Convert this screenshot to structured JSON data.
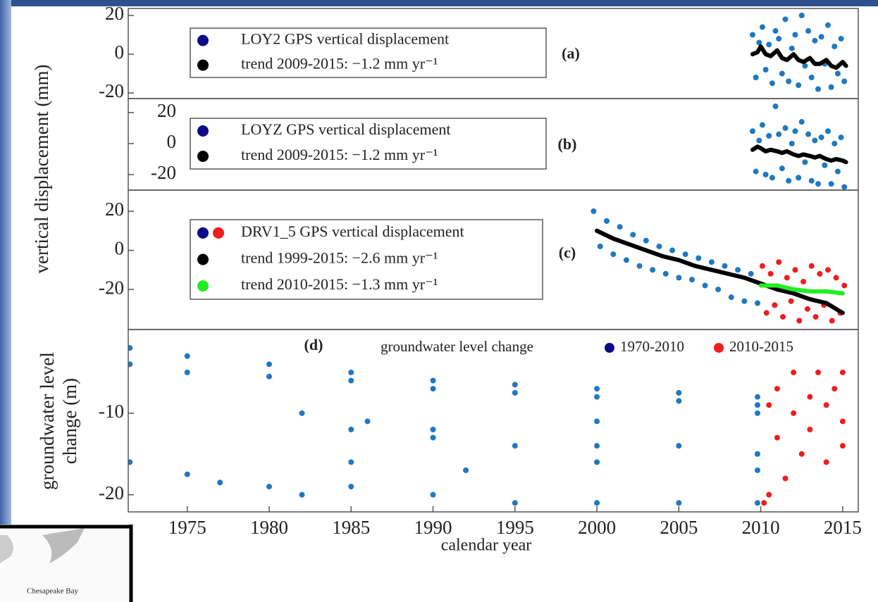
{
  "figure": {
    "ylabel": "vertical displacement  (mm)",
    "xlabel": "calendar year"
  },
  "inset": {
    "label": "Chesapeake Bay"
  },
  "chart_data": [
    {
      "type": "scatter",
      "label": "(a)",
      "xlim": [
        1971.4,
        2015.95
      ],
      "ylim": [
        -22.9,
        23.6
      ],
      "yticks": [
        20,
        0,
        -20
      ],
      "legend": [
        {
          "label": "LOY2 GPS vertical displacement",
          "colors": [
            "#0b0b8a"
          ]
        },
        {
          "label": "trend  2009-2015: −1.2 mm yr⁻¹",
          "colors": [
            "#000000"
          ]
        }
      ],
      "series": [
        {
          "mode": "scatter",
          "color": "#1f78c1",
          "x": [
            2009.5,
            2009.7,
            2009.9,
            2010.1,
            2010.3,
            2010.5,
            2010.7,
            2010.9,
            2011.1,
            2011.3,
            2011.5,
            2011.7,
            2011.9,
            2012.1,
            2012.3,
            2012.5,
            2012.7,
            2012.9,
            2013.1,
            2013.3,
            2013.5,
            2013.7,
            2013.9,
            2014.1,
            2014.3,
            2014.5,
            2014.7,
            2014.9,
            2015.1
          ],
          "values": [
            10,
            -12,
            6,
            14,
            -8,
            5,
            -15,
            12,
            8,
            -10,
            18,
            -14,
            3,
            10,
            -16,
            20,
            -6,
            12,
            -12,
            7,
            -18,
            9,
            -5,
            15,
            -17,
            4,
            -10,
            8,
            -14
          ]
        },
        {
          "mode": "line",
          "color": "#000000",
          "x": [
            2009.5,
            2009.8,
            2010.0,
            2010.3,
            2010.6,
            2011.0,
            2011.3,
            2011.6,
            2012.0,
            2012.3,
            2012.6,
            2013.0,
            2013.3,
            2013.6,
            2014.0,
            2014.3,
            2014.6,
            2015.0,
            2015.2
          ],
          "values": [
            0,
            1,
            4,
            0,
            -1,
            2,
            -2,
            -3,
            0,
            -3,
            -4,
            -2,
            -5,
            -5,
            -3,
            -6,
            -7,
            -4,
            -6
          ]
        }
      ]
    },
    {
      "type": "scatter",
      "label": "(b)",
      "xlim": [
        1971.4,
        2015.95
      ],
      "ylim": [
        -30,
        29
      ],
      "yticks": [
        20,
        0,
        -20
      ],
      "legend": [
        {
          "label": "LOYZ GPS vertical displacement",
          "colors": [
            "#0b0b8a"
          ]
        },
        {
          "label": "trend  2009-2015: −1.2 mm yr⁻¹",
          "colors": [
            "#000000"
          ]
        }
      ],
      "series": [
        {
          "mode": "scatter",
          "color": "#1f78c1",
          "x": [
            2009.5,
            2009.7,
            2009.9,
            2010.1,
            2010.3,
            2010.5,
            2010.7,
            2010.9,
            2011.1,
            2011.3,
            2011.5,
            2011.7,
            2011.9,
            2012.1,
            2012.3,
            2012.5,
            2012.7,
            2012.9,
            2013.1,
            2013.3,
            2013.5,
            2013.7,
            2013.9,
            2014.1,
            2014.3,
            2014.5,
            2014.7,
            2014.9,
            2015.1
          ],
          "values": [
            8,
            -18,
            2,
            12,
            -20,
            5,
            -22,
            24,
            6,
            -16,
            10,
            -24,
            0,
            8,
            -22,
            14,
            -12,
            6,
            -24,
            2,
            -26,
            4,
            -14,
            8,
            -26,
            0,
            -18,
            4,
            -28
          ]
        },
        {
          "mode": "line",
          "color": "#000000",
          "x": [
            2009.5,
            2009.8,
            2010.0,
            2010.3,
            2010.6,
            2011.0,
            2011.3,
            2011.6,
            2012.0,
            2012.3,
            2012.6,
            2013.0,
            2013.3,
            2013.6,
            2014.0,
            2014.3,
            2014.6,
            2015.0,
            2015.2
          ],
          "values": [
            -4,
            -2,
            -3,
            -5,
            -4,
            -5,
            -6,
            -5,
            -7,
            -8,
            -7,
            -8,
            -9,
            -8,
            -10,
            -11,
            -10,
            -11,
            -12
          ]
        }
      ]
    },
    {
      "type": "scatter",
      "label": "(c)",
      "xlim": [
        1971.4,
        2015.95
      ],
      "ylim": [
        -40.5,
        30.8
      ],
      "yticks": [
        20,
        0,
        -20
      ],
      "legend": [
        {
          "label": "DRV1_5 GPS vertical displacement",
          "colors": [
            "#0b0b8a",
            "#f01d1d"
          ]
        },
        {
          "label": "trend 1999-2015: −2.6  mm yr⁻¹",
          "colors": [
            "#000000"
          ]
        },
        {
          "label": "trend 2010-2015: −1.3  mm yr⁻¹",
          "colors": [
            "#22ee22"
          ]
        }
      ],
      "series": [
        {
          "mode": "scatter",
          "color": "#1f78c1",
          "x": [
            1999.8,
            2000.2,
            2000.6,
            2001.0,
            2001.4,
            2001.8,
            2002.2,
            2002.6,
            2003.0,
            2003.4,
            2003.8,
            2004.2,
            2004.6,
            2005.0,
            2005.4,
            2005.8,
            2006.2,
            2006.6,
            2007.0,
            2007.4,
            2007.8,
            2008.2,
            2008.6,
            2009.0,
            2009.4,
            2009.8
          ],
          "values": [
            20,
            2,
            15,
            -2,
            12,
            -5,
            8,
            -8,
            5,
            -10,
            2,
            -12,
            0,
            -14,
            -2,
            -15,
            -4,
            -18,
            -6,
            -20,
            -8,
            -24,
            -10,
            -26,
            -12,
            -27
          ]
        },
        {
          "mode": "scatter",
          "color": "#f01d1d",
          "x": [
            2010.1,
            2010.35,
            2010.6,
            2010.85,
            2011.1,
            2011.35,
            2011.6,
            2011.85,
            2012.1,
            2012.35,
            2012.6,
            2012.85,
            2013.1,
            2013.35,
            2013.6,
            2013.85,
            2014.1,
            2014.35,
            2014.6,
            2014.85,
            2015.1
          ],
          "values": [
            -8,
            -32,
            -12,
            -28,
            -6,
            -34,
            -14,
            -26,
            -10,
            -36,
            -16,
            -30,
            -8,
            -34,
            -12,
            -28,
            -10,
            -36,
            -14,
            -32,
            -18
          ]
        },
        {
          "mode": "line",
          "color": "#000000",
          "x": [
            2000,
            2001,
            2002,
            2003,
            2004,
            2005,
            2006,
            2007,
            2008,
            2009,
            2010,
            2011,
            2012,
            2013,
            2014,
            2015
          ],
          "values": [
            10,
            6,
            3,
            0,
            -3,
            -5,
            -8,
            -10,
            -12,
            -14,
            -17,
            -20,
            -22,
            -25,
            -27,
            -32
          ]
        },
        {
          "mode": "line",
          "color": "#22ee22",
          "x": [
            2010,
            2011,
            2012,
            2013,
            2014,
            2015
          ],
          "values": [
            -18,
            -18,
            -20,
            -21,
            -21,
            -22
          ]
        }
      ]
    },
    {
      "type": "scatter",
      "label": "(d)",
      "title": "groundwater level change",
      "ylabel": [
        "groundwater level",
        "change (m)"
      ],
      "xlim": [
        1971.4,
        2015.95
      ],
      "ylim": [
        -22.1,
        0.26
      ],
      "yticks": [
        -10,
        -20
      ],
      "xticks": [
        1975,
        1980,
        1985,
        1990,
        1995,
        2000,
        2005,
        2010,
        2015
      ],
      "legend": [
        {
          "label": "1970-2010",
          "colors": [
            "#0b0b8a"
          ]
        },
        {
          "label": "2010-2015",
          "colors": [
            "#f01d1d"
          ]
        }
      ],
      "series": [
        {
          "mode": "scatter",
          "color": "#1f78c1",
          "x": [
            1971.5,
            1975,
            1980,
            1985,
            1990,
            1995,
            2000,
            2005,
            2009.8,
            1971.5,
            1975,
            1980,
            1985,
            1990,
            1995,
            2000,
            2005,
            2009.8,
            1971.5,
            1975,
            1977,
            1980,
            1982,
            1985,
            1990,
            1995,
            2000,
            2005,
            2009.8,
            1985,
            1990,
            1995,
            2000,
            2005,
            2009.8,
            1982,
            1986,
            1990,
            2000,
            2009.8,
            1985,
            1992,
            2000,
            2009.8
          ],
          "values": [
            -2,
            -3,
            -4,
            -5,
            -6,
            -6.5,
            -7,
            -7.5,
            -8,
            -4,
            -5,
            -5.5,
            -6,
            -7,
            -7.5,
            -8,
            -8.5,
            -9,
            -16,
            -17.5,
            -18.5,
            -19,
            -20,
            -19,
            -20,
            -21,
            -21,
            -21,
            -21,
            -12,
            -13,
            -14,
            -14,
            -14,
            -15,
            -10,
            -11,
            -12,
            -11,
            -10,
            -16,
            -17,
            -16,
            -17
          ]
        },
        {
          "mode": "scatter",
          "color": "#f01d1d",
          "x": [
            2010.2,
            2010.5,
            2010.5,
            2011,
            2011,
            2011.5,
            2012,
            2012,
            2012.5,
            2013,
            2013,
            2013.5,
            2014,
            2014,
            2014.5,
            2015,
            2015,
            2015
          ],
          "values": [
            -21,
            -20,
            -9,
            -7,
            -13,
            -18,
            -5,
            -10,
            -15,
            -8,
            -12,
            -5,
            -9,
            -16,
            -7,
            -5,
            -11,
            -14
          ]
        }
      ]
    }
  ]
}
